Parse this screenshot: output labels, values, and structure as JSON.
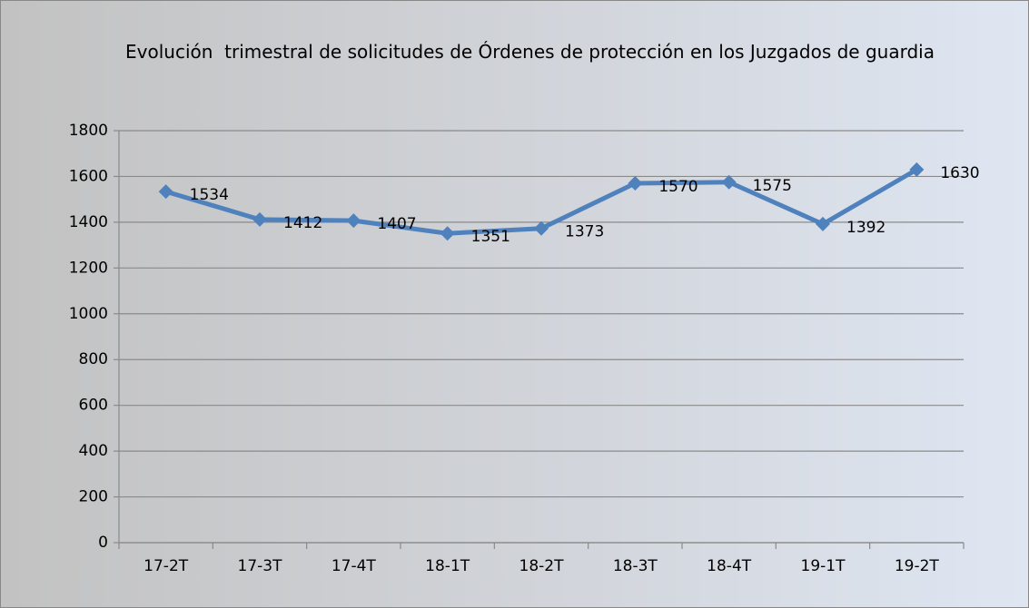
{
  "chart_data": {
    "type": "line",
    "title": "Evolución  trimestral de solicitudes de Órdenes de protección en los Juzgados de guardia",
    "categories": [
      "17-2T",
      "17-3T",
      "17-4T",
      "18-1T",
      "18-2T",
      "18-3T",
      "18-4T",
      "19-1T",
      "19-2T"
    ],
    "series": [
      {
        "color": "#4f81bd",
        "values": [
          1534,
          1412,
          1407,
          1351,
          1373,
          1570,
          1575,
          1392,
          1630
        ]
      }
    ],
    "ylim": [
      0,
      1800
    ],
    "yticks": [
      0,
      200,
      400,
      600,
      800,
      1000,
      1200,
      1400,
      1600,
      1800
    ],
    "grid": true,
    "data_labels": true
  }
}
